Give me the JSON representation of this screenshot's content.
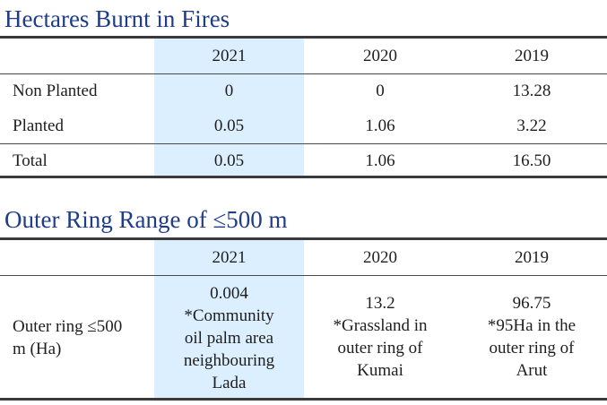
{
  "table1": {
    "title": "Hectares Burnt in Fires",
    "columns": [
      "2021",
      "2020",
      "2019"
    ],
    "rows": [
      {
        "label": "Non Planted",
        "values": [
          "0",
          "0",
          "13.28"
        ]
      },
      {
        "label": "Planted",
        "values": [
          "0.05",
          "1.06",
          "3.22"
        ]
      },
      {
        "label": "Total",
        "values": [
          "0.05",
          "1.06",
          "16.50"
        ]
      }
    ]
  },
  "table2": {
    "title": "Outer Ring Range of ≤500 m",
    "columns": [
      "2021",
      "2020",
      "2019"
    ],
    "row_label_line1": "Outer ring ≤500",
    "row_label_line2": "m (Ha)",
    "c2021": [
      "0.004",
      "*Community",
      "oil palm area",
      "neighbouring",
      "Lada"
    ],
    "c2020": [
      "13.2",
      "*Grassland in",
      "outer ring of",
      "Kumai"
    ],
    "c2019": [
      "96.75",
      "*95Ha in the",
      "outer ring of",
      "Arut"
    ]
  },
  "colors": {
    "title": "#1f3c88",
    "highlight": "#dcefff"
  }
}
